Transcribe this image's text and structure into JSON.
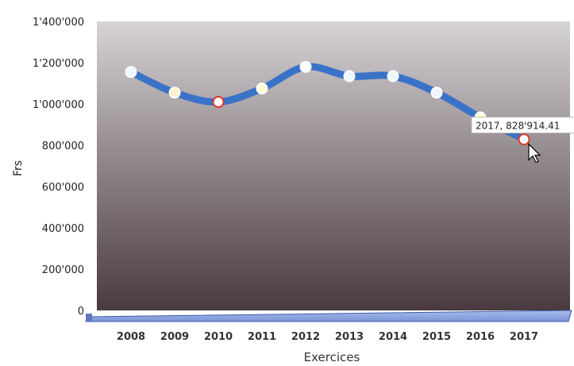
{
  "chart_data": {
    "type": "line",
    "xlabel": "Exercices",
    "ylabel": "Frs",
    "categories": [
      "2008",
      "2009",
      "2010",
      "2011",
      "2012",
      "2013",
      "2014",
      "2015",
      "2016",
      "2017"
    ],
    "series": [
      {
        "values": [
          1155000,
          1055000,
          1010000,
          1075000,
          1180000,
          1135000,
          1135000,
          1055000,
          935000,
          828914.41
        ],
        "color": "#3a72c8"
      }
    ],
    "ylim": [
      0,
      1400000
    ],
    "yticks": [
      {
        "value": 0,
        "label": "0"
      },
      {
        "value": 200000,
        "label": "200'000"
      },
      {
        "value": 400000,
        "label": "400'000"
      },
      {
        "value": 600000,
        "label": "600'000"
      },
      {
        "value": 800000,
        "label": "800'000"
      },
      {
        "value": 1000000,
        "label": "1'000'000"
      },
      {
        "value": 1200000,
        "label": "1'200'000"
      },
      {
        "value": 1400000,
        "label": "1'400'000"
      }
    ],
    "point_colors": [
      "#eef6ff",
      "#fff1c8",
      "#ffffff",
      "#fffbd0",
      "#ffffff",
      "#eef6ff",
      "#eef6ff",
      "#eef6ff",
      "#fffbd0",
      "#ffffff"
    ],
    "point_stroke_colors": [
      "#ffffff",
      "#ffffff",
      "#e03a2a",
      "#ffffff",
      "#ffffff",
      "#ffffff",
      "#ffffff",
      "#ffffff",
      "#ffffff",
      "#e03a2a"
    ],
    "tooltip": {
      "index": 9,
      "text": "2017, 828'914.41"
    },
    "grid": false,
    "legend": "none",
    "colors": {
      "line": "#3a72c8",
      "plot_top": "#d6d3d6",
      "plot_mid": "#958c90",
      "plot_bottom": "#4a3a40",
      "floor": "#7a94d6",
      "floor_edge": "#3f5ca8",
      "text": "#222222"
    }
  }
}
